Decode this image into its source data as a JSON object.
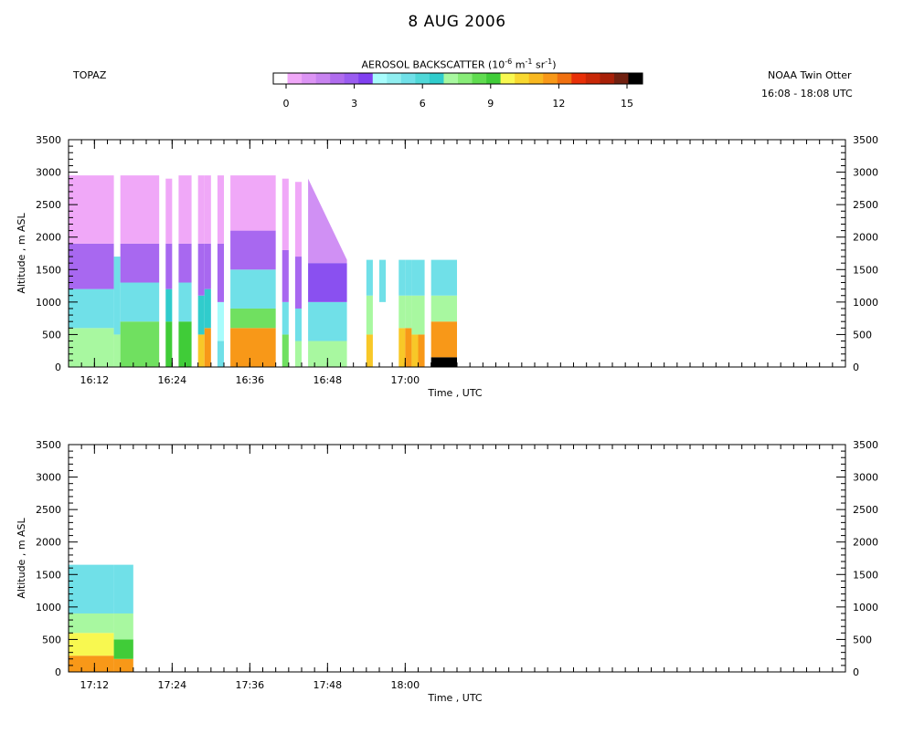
{
  "header": {
    "title": "8 AUG 2006",
    "left_label": "TOPAZ",
    "aircraft": "NOAA Twin Otter",
    "time_range": "16:08 - 18:08 UTC"
  },
  "colorbar": {
    "title_pre": "AEROSOL BACKSCATTER (10",
    "exp1": "-6",
    "mid1": " m",
    "exp2": "-1",
    "mid2": " sr",
    "exp3": "-1",
    "title_post": ")",
    "ticks": [
      "0",
      "3",
      "6",
      "9",
      "12",
      "15"
    ],
    "colors": [
      "#ffffff",
      "#f0a8f8",
      "#dc94f4",
      "#c883f0",
      "#b06cee",
      "#9a5cf0",
      "#8040f0",
      "#a8fcfc",
      "#90eef0",
      "#70e0e8",
      "#50d8d8",
      "#30cccc",
      "#a8f8a0",
      "#88ec78",
      "#60dc50",
      "#40cc38",
      "#f8f850",
      "#f8d830",
      "#f8b820",
      "#f89818",
      "#f07010",
      "#e83008",
      "#c82808",
      "#a82008",
      "#702010",
      "#000000"
    ]
  },
  "chart_data": [
    {
      "type": "heatmap",
      "title": "",
      "xlabel": "Time , UTC",
      "ylabel": "Altitude , m ASL",
      "x_ticks": [
        "16:12",
        "16:24",
        "16:36",
        "16:48",
        "17:00"
      ],
      "y_ticks": [
        "0",
        "500",
        "1000",
        "1500",
        "2000",
        "2500",
        "3000",
        "3500"
      ],
      "ylim": [
        0,
        3500
      ],
      "value_units": "aerosol backscatter (10^-6 m^-1 sr^-1)",
      "segments": [
        {
          "t_start": "16:08",
          "t_end": "16:15",
          "top_alt": 2950,
          "layers": [
            [
              0,
              600,
              6.5
            ],
            [
              600,
              1200,
              4.5
            ],
            [
              1200,
              1900,
              2.5
            ],
            [
              1900,
              2950,
              1.0
            ]
          ]
        },
        {
          "t_start": "16:15",
          "t_end": "16:16",
          "top_alt": 1700,
          "layers": [
            [
              0,
              500,
              7
            ],
            [
              500,
              1700,
              4.5
            ]
          ]
        },
        {
          "t_start": "16:16",
          "t_end": "16:22",
          "top_alt": 2950,
          "layers": [
            [
              0,
              700,
              7.5
            ],
            [
              700,
              1300,
              4.5
            ],
            [
              1300,
              1900,
              2.5
            ],
            [
              1900,
              2950,
              1.0
            ]
          ]
        },
        {
          "t_start": "16:23",
          "t_end": "16:24",
          "top_alt": 2900,
          "layers": [
            [
              0,
              700,
              9
            ],
            [
              700,
              1200,
              5.5
            ],
            [
              1200,
              1900,
              2.5
            ],
            [
              1900,
              2900,
              1.0
            ]
          ]
        },
        {
          "t_start": "16:25",
          "t_end": "16:26",
          "top_alt": 2950,
          "layers": [
            [
              0,
              700,
              9
            ],
            [
              700,
              1300,
              5
            ],
            [
              1300,
              1900,
              2.5
            ],
            [
              1900,
              2950,
              1.0
            ]
          ]
        },
        {
          "t_start": "16:26",
          "t_end": "16:27",
          "top_alt": 2950,
          "layers": [
            [
              0,
              700,
              9
            ],
            [
              700,
              1300,
              5
            ],
            [
              1300,
              1900,
              2.5
            ],
            [
              1900,
              2950,
              1.0
            ]
          ]
        },
        {
          "t_start": "16:28",
          "t_end": "16:29",
          "top_alt": 2950,
          "layers": [
            [
              0,
              500,
              11
            ],
            [
              500,
              1100,
              6
            ],
            [
              1100,
              1900,
              3
            ],
            [
              1900,
              2950,
              1.0
            ]
          ]
        },
        {
          "t_start": "16:29",
          "t_end": "16:30",
          "top_alt": 2950,
          "layers": [
            [
              0,
              600,
              12
            ],
            [
              600,
              1200,
              6
            ],
            [
              1200,
              1900,
              3
            ],
            [
              1900,
              2950,
              1.0
            ]
          ]
        },
        {
          "t_start": "16:31",
          "t_end": "16:32",
          "top_alt": 2950,
          "layers": [
            [
              0,
              400,
              5
            ],
            [
              400,
              1000,
              4
            ],
            [
              1000,
              1900,
              2.5
            ],
            [
              1900,
              2950,
              1.0
            ]
          ]
        },
        {
          "t_start": "16:33",
          "t_end": "16:40",
          "top_alt": 2950,
          "layers": [
            [
              0,
              600,
              12
            ],
            [
              600,
              900,
              7.5
            ],
            [
              900,
              1500,
              4.5
            ],
            [
              1500,
              2100,
              2.5
            ],
            [
              2100,
              2950,
              1.0
            ]
          ]
        },
        {
          "t_start": "16:41",
          "t_end": "16:42",
          "top_alt": 2900,
          "layers": [
            [
              0,
              500,
              8
            ],
            [
              500,
              1000,
              4.5
            ],
            [
              1000,
              1800,
              2.5
            ],
            [
              1800,
              2900,
              1.0
            ]
          ]
        },
        {
          "t_start": "16:43",
          "t_end": "16:44",
          "top_alt": 2850,
          "layers": [
            [
              0,
              400,
              7
            ],
            [
              400,
              900,
              4.5
            ],
            [
              900,
              1700,
              2.5
            ],
            [
              1700,
              2850,
              1.0
            ]
          ]
        },
        {
          "t_start": "16:45",
          "t_end": "16:51",
          "top_alt_start": 2900,
          "top_alt_end": 1650,
          "layers": [
            [
              0,
              400,
              7
            ],
            [
              400,
              1000,
              5
            ],
            [
              1000,
              1600,
              3.5
            ],
            [
              1600,
              2900,
              1.5
            ]
          ]
        },
        {
          "t_start": "16:54",
          "t_end": "16:55",
          "top_alt": 1650,
          "layers": [
            [
              0,
              500,
              11
            ],
            [
              500,
              1100,
              7
            ],
            [
              1100,
              1650,
              4.5
            ]
          ]
        },
        {
          "t_start": "16:56",
          "t_end": "16:57",
          "top_alt": 1650,
          "layers": [
            [
              1000,
              1650,
              4.5
            ]
          ]
        },
        {
          "t_start": "16:59",
          "t_end": "17:00",
          "top_alt": 1650,
          "layers": [
            [
              0,
              600,
              11
            ],
            [
              600,
              1100,
              7
            ],
            [
              1100,
              1650,
              4.5
            ]
          ]
        },
        {
          "t_start": "17:00",
          "t_end": "17:01",
          "top_alt": 1650,
          "layers": [
            [
              0,
              600,
              12
            ],
            [
              600,
              1100,
              7
            ],
            [
              1100,
              1650,
              4.5
            ]
          ]
        },
        {
          "t_start": "17:01",
          "t_end": "17:02",
          "top_alt": 1650,
          "layers": [
            [
              0,
              500,
              11
            ],
            [
              500,
              1100,
              7
            ],
            [
              1100,
              1650,
              4.5
            ]
          ]
        },
        {
          "t_start": "17:02",
          "t_end": "17:03",
          "top_alt": 1650,
          "layers": [
            [
              0,
              500,
              12
            ],
            [
              500,
              1100,
              7
            ],
            [
              1100,
              1650,
              4.5
            ]
          ]
        },
        {
          "t_start": "17:04",
          "t_end": "17:08",
          "top_alt": 1650,
          "layers": [
            [
              0,
              150,
              15
            ],
            [
              150,
              700,
              12
            ],
            [
              700,
              1100,
              7
            ],
            [
              1100,
              1650,
              4.5
            ]
          ]
        }
      ]
    },
    {
      "type": "heatmap",
      "title": "",
      "xlabel": "Time , UTC",
      "ylabel": "Altitude , m ASL",
      "x_ticks": [
        "17:12",
        "17:24",
        "17:36",
        "17:48",
        "18:00"
      ],
      "y_ticks": [
        "0",
        "500",
        "1000",
        "1500",
        "2000",
        "2500",
        "3000",
        "3500"
      ],
      "ylim": [
        0,
        3500
      ],
      "value_units": "aerosol backscatter (10^-6 m^-1 sr^-1)",
      "segments": [
        {
          "t_start": "17:08",
          "t_end": "17:15",
          "top_alt": 1650,
          "layers": [
            [
              0,
              250,
              12
            ],
            [
              250,
              600,
              10
            ],
            [
              600,
              900,
              7
            ],
            [
              900,
              1650,
              4.5
            ]
          ]
        },
        {
          "t_start": "17:15",
          "t_end": "17:18",
          "top_alt": 1650,
          "layers": [
            [
              0,
              200,
              12
            ],
            [
              200,
              500,
              9
            ],
            [
              500,
              900,
              7
            ],
            [
              900,
              1650,
              4.5
            ]
          ]
        }
      ]
    }
  ]
}
